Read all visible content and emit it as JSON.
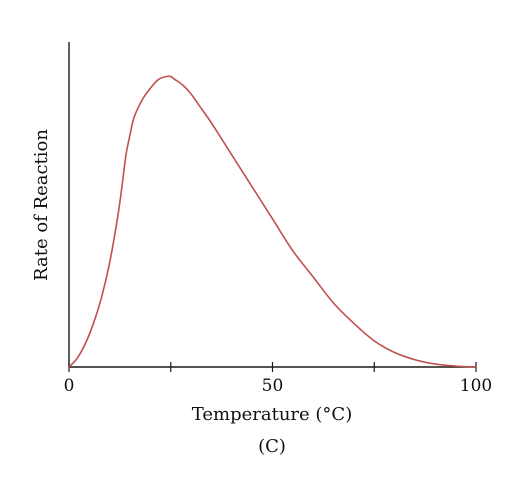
{
  "chart_data": {
    "type": "line",
    "panel_label": "(C)",
    "xlabel": "Temperature (°C)",
    "ylabel": "Rate of Reaction",
    "xlim": [
      0,
      100
    ],
    "ylim": [
      0,
      1.05
    ],
    "x_ticks": [
      0,
      25,
      50,
      75,
      100
    ],
    "x_tick_labels": [
      "0",
      "",
      "50",
      "",
      "100"
    ],
    "y_ticks": [],
    "grid": false,
    "legend": "none",
    "series": [
      {
        "color": "#c0504d",
        "x": [
          0,
          2,
          4,
          6,
          8,
          10,
          12,
          13,
          14,
          15,
          16,
          18,
          20,
          22,
          24,
          25,
          26,
          28,
          30,
          32,
          35,
          40,
          45,
          50,
          55,
          60,
          65,
          70,
          75,
          80,
          85,
          90,
          95,
          100
        ],
        "y": [
          0,
          0.03,
          0.08,
          0.15,
          0.24,
          0.36,
          0.52,
          0.62,
          0.73,
          0.8,
          0.86,
          0.92,
          0.96,
          0.99,
          1.0,
          1.0,
          0.99,
          0.97,
          0.94,
          0.9,
          0.84,
          0.73,
          0.62,
          0.51,
          0.4,
          0.31,
          0.22,
          0.15,
          0.09,
          0.05,
          0.025,
          0.01,
          0.003,
          0
        ]
      }
    ]
  }
}
